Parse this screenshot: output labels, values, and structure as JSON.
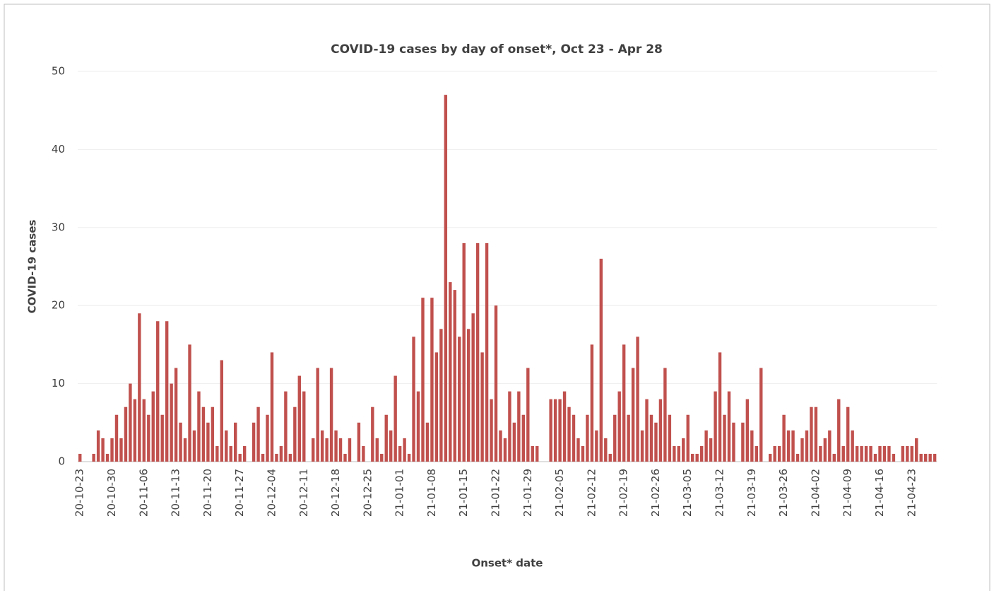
{
  "chart_data": {
    "type": "bar",
    "title": "COVID-19 cases by day of onset*, Oct 23 - Apr 28",
    "x_label": "Onset* date",
    "y_label": "COVID-19 cases",
    "color": "#c0504d",
    "grid": true,
    "ylim": [
      0,
      50
    ],
    "yticks": [
      0,
      10,
      20,
      30,
      40,
      50
    ],
    "categories": [
      "20-10-23",
      null,
      null,
      null,
      null,
      null,
      null,
      "20-10-30",
      null,
      null,
      null,
      null,
      null,
      null,
      "20-11-06",
      null,
      null,
      null,
      null,
      null,
      null,
      "20-11-13",
      null,
      null,
      null,
      null,
      null,
      null,
      "20-11-20",
      null,
      null,
      null,
      null,
      null,
      null,
      "20-11-27",
      null,
      null,
      null,
      null,
      null,
      null,
      "20-12-04",
      null,
      null,
      null,
      null,
      null,
      null,
      "20-12-11",
      null,
      null,
      null,
      null,
      null,
      null,
      "20-12-18",
      null,
      null,
      null,
      null,
      null,
      null,
      "20-12-25",
      null,
      null,
      null,
      null,
      null,
      null,
      "21-01-01",
      null,
      null,
      null,
      null,
      null,
      null,
      "21-01-08",
      null,
      null,
      null,
      null,
      null,
      null,
      "21-01-15",
      null,
      null,
      null,
      null,
      null,
      null,
      "21-01-22",
      null,
      null,
      null,
      null,
      null,
      null,
      "21-01-29",
      null,
      null,
      null,
      null,
      null,
      null,
      "21-02-05",
      null,
      null,
      null,
      null,
      null,
      null,
      "21-02-12",
      null,
      null,
      null,
      null,
      null,
      null,
      "21-02-19",
      null,
      null,
      null,
      null,
      null,
      null,
      "21-02-26",
      null,
      null,
      null,
      null,
      null,
      null,
      "21-03-05",
      null,
      null,
      null,
      null,
      null,
      null,
      "21-03-12",
      null,
      null,
      null,
      null,
      null,
      null,
      "21-03-19",
      null,
      null,
      null,
      null,
      null,
      null,
      "21-03-26",
      null,
      null,
      null,
      null,
      null,
      null,
      "21-04-02",
      null,
      null,
      null,
      null,
      null,
      null,
      "21-04-09",
      null,
      null,
      null,
      null,
      null,
      null,
      "21-04-16",
      null,
      null,
      null,
      null,
      null,
      null,
      "21-04-23",
      null,
      null,
      null,
      null,
      null
    ],
    "values": [
      1,
      0,
      0,
      1,
      4,
      3,
      1,
      3,
      6,
      3,
      7,
      10,
      8,
      19,
      8,
      6,
      9,
      18,
      6,
      18,
      10,
      12,
      5,
      3,
      15,
      4,
      9,
      7,
      5,
      7,
      2,
      13,
      4,
      2,
      5,
      1,
      2,
      0,
      5,
      7,
      1,
      6,
      14,
      1,
      2,
      9,
      1,
      7,
      11,
      9,
      0,
      3,
      12,
      4,
      3,
      12,
      4,
      3,
      1,
      3,
      0,
      5,
      2,
      0,
      7,
      3,
      1,
      6,
      4,
      11,
      2,
      3,
      1,
      16,
      9,
      21,
      5,
      21,
      14,
      17,
      47,
      23,
      22,
      16,
      28,
      17,
      19,
      28,
      14,
      28,
      8,
      20,
      4,
      3,
      9,
      5,
      9,
      6,
      12,
      2,
      2,
      0,
      0,
      8,
      8,
      8,
      9,
      7,
      6,
      3,
      2,
      6,
      15,
      4,
      26,
      3,
      1,
      6,
      9,
      15,
      6,
      12,
      16,
      4,
      8,
      6,
      5,
      8,
      12,
      6,
      2,
      2,
      3,
      6,
      1,
      1,
      2,
      4,
      3,
      9,
      14,
      6,
      9,
      5,
      0,
      5,
      8,
      4,
      2,
      12,
      0,
      1,
      2,
      2,
      6,
      4,
      4,
      1,
      3,
      4,
      7,
      7,
      2,
      3,
      4,
      1,
      8,
      2,
      7,
      4,
      2,
      2,
      2,
      2,
      1,
      2,
      2,
      2,
      1,
      0,
      2,
      2,
      2,
      3,
      1,
      1,
      1,
      1
    ]
  }
}
